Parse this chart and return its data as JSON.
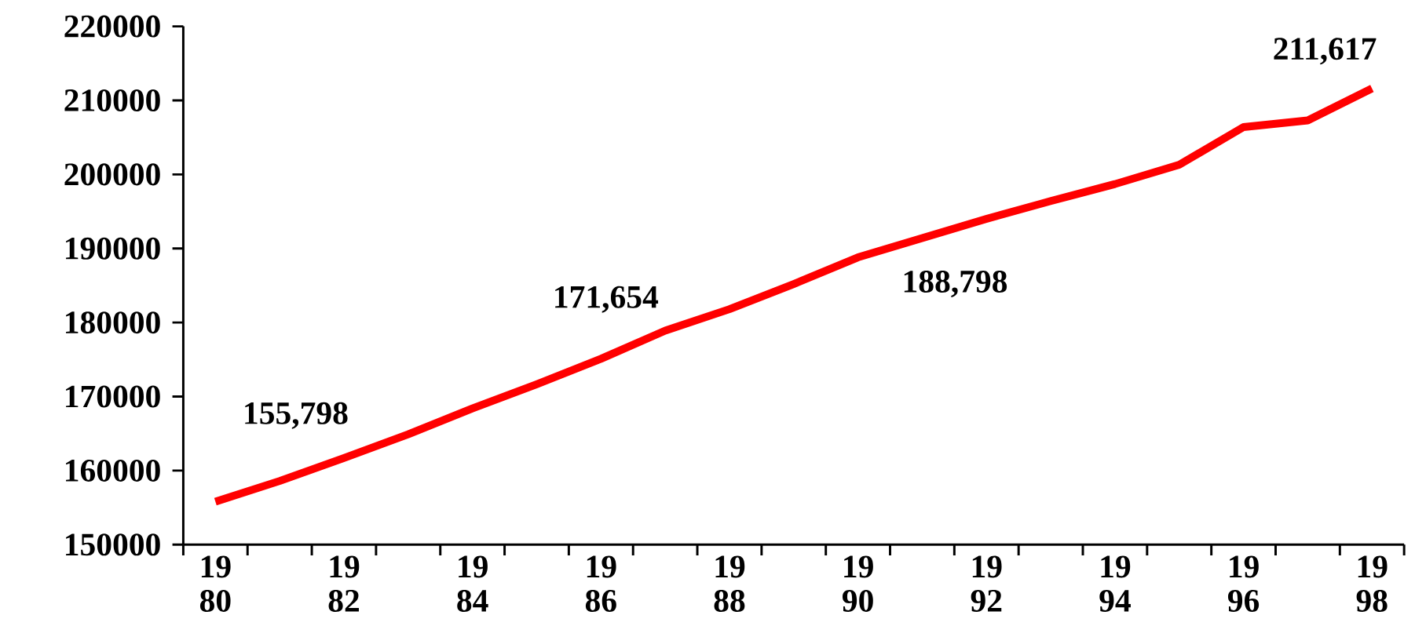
{
  "chart_data": {
    "type": "line",
    "categories": [
      "19 80",
      null,
      "19 82",
      null,
      "19 84",
      null,
      "19 86",
      null,
      "19 88",
      null,
      "19 90",
      null,
      "19 92",
      null,
      "19 94",
      null,
      "19 96",
      null,
      "19 98"
    ],
    "series": [
      {
        "color": "#ff0000",
        "values": [
          155798,
          158600,
          161700,
          164900,
          168400,
          171654,
          175100,
          178900,
          181800,
          185200,
          188798,
          191400,
          194000,
          196400,
          198700,
          201300,
          206400,
          207300,
          211617
        ]
      }
    ],
    "ylim": [
      150000,
      220000
    ],
    "yticks": [
      150000,
      160000,
      170000,
      180000,
      190000,
      200000,
      210000,
      220000
    ],
    "grid": false,
    "legend": false,
    "marker": "none",
    "line_style": "solid",
    "annotations": [
      "155,798",
      "171,654",
      "188,798",
      "211,617"
    ]
  }
}
